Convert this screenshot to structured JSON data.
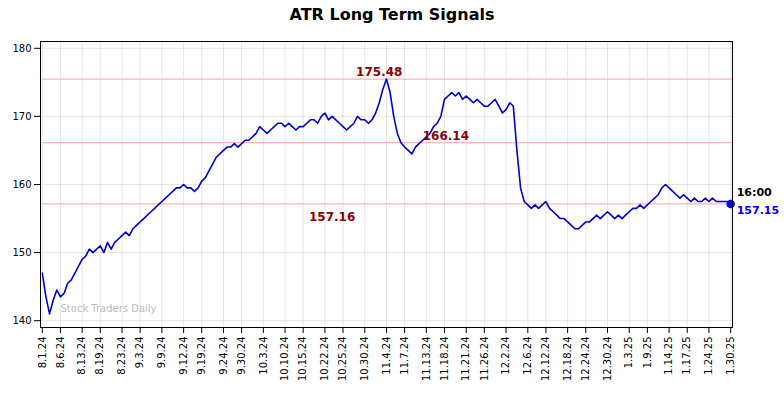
{
  "chart_data": {
    "type": "line",
    "title": "ATR Long Term Signals",
    "categories": [
      "8.1.24",
      null,
      null,
      null,
      null,
      "8.6.24",
      null,
      null,
      null,
      null,
      null,
      "8.13.24",
      null,
      null,
      null,
      null,
      "8.19.24",
      null,
      null,
      null,
      null,
      null,
      "8.23.24",
      null,
      null,
      null,
      null,
      "9.3.24",
      null,
      null,
      null,
      null,
      null,
      "9.9.24",
      null,
      null,
      null,
      null,
      null,
      "9.12.24",
      null,
      null,
      null,
      null,
      "9.19.24",
      null,
      null,
      null,
      null,
      null,
      "9.24.24",
      null,
      null,
      null,
      null,
      "9.30.24",
      null,
      null,
      null,
      null,
      null,
      "10.3.24",
      null,
      null,
      null,
      null,
      null,
      "10.10.24",
      null,
      null,
      null,
      null,
      "10.15.24",
      null,
      null,
      null,
      null,
      null,
      "10.22.24",
      null,
      null,
      null,
      null,
      "10.25.24",
      null,
      null,
      null,
      null,
      null,
      "10.30.24",
      null,
      null,
      null,
      null,
      null,
      "11.4.24",
      null,
      null,
      null,
      null,
      "11.7.24",
      null,
      null,
      null,
      null,
      null,
      "11.13.24",
      null,
      null,
      null,
      null,
      "11.18.24",
      null,
      null,
      null,
      null,
      null,
      "11.21.24",
      null,
      null,
      null,
      null,
      "11.26.24",
      null,
      null,
      null,
      null,
      null,
      "12.2.24",
      null,
      null,
      null,
      null,
      null,
      "12.6.24",
      null,
      null,
      null,
      null,
      "12.12.24",
      null,
      null,
      null,
      null,
      null,
      "12.18.24",
      null,
      null,
      null,
      null,
      "12.24.24",
      null,
      null,
      null,
      null,
      null,
      "12.30.24",
      null,
      null,
      null,
      null,
      null,
      "1.3.25",
      null,
      null,
      null,
      null,
      "1.9.25",
      null,
      null,
      null,
      null,
      null,
      "1.14.25",
      null,
      null,
      null,
      null,
      "1.17.25",
      null,
      null,
      null,
      null,
      null,
      "1.24.25",
      null,
      null,
      null,
      null,
      null,
      "1.30.25"
    ],
    "values": [
      147.0,
      143.5,
      141.0,
      143.0,
      144.5,
      143.5,
      144.0,
      145.5,
      146.0,
      147.0,
      148.0,
      149.0,
      149.5,
      150.5,
      150.0,
      150.5,
      151.0,
      150.0,
      151.5,
      150.5,
      151.5,
      152.0,
      152.5,
      153.0,
      152.5,
      153.5,
      154.0,
      154.5,
      155.0,
      155.5,
      156.0,
      156.5,
      157.0,
      157.5,
      158.0,
      158.5,
      159.0,
      159.5,
      159.5,
      160.0,
      159.5,
      159.5,
      159.0,
      159.5,
      160.5,
      161.0,
      162.0,
      163.0,
      164.0,
      164.5,
      165.0,
      165.5,
      165.5,
      166.0,
      165.5,
      166.0,
      166.5,
      166.5,
      167.0,
      167.5,
      168.5,
      168.0,
      167.5,
      168.0,
      168.5,
      169.0,
      169.0,
      168.5,
      169.0,
      168.5,
      168.0,
      168.5,
      168.5,
      169.0,
      169.5,
      169.5,
      169.0,
      170.0,
      170.5,
      169.5,
      170.0,
      169.5,
      169.0,
      168.5,
      168.0,
      168.5,
      169.0,
      170.0,
      169.5,
      169.5,
      169.0,
      169.5,
      170.5,
      172.0,
      174.0,
      175.48,
      173.5,
      170.0,
      167.5,
      166.14,
      165.5,
      165.0,
      164.5,
      165.5,
      166.0,
      166.5,
      167.0,
      167.5,
      168.5,
      169.0,
      170.0,
      172.5,
      173.0,
      173.5,
      173.0,
      173.5,
      172.5,
      173.0,
      172.5,
      172.0,
      172.5,
      172.0,
      171.5,
      171.5,
      172.0,
      172.5,
      171.5,
      170.5,
      171.0,
      172.0,
      171.5,
      165.0,
      159.5,
      157.5,
      157.0,
      156.5,
      157.0,
      156.5,
      157.0,
      157.5,
      156.5,
      156.0,
      155.5,
      155.0,
      155.0,
      154.5,
      154.0,
      153.5,
      153.5,
      154.0,
      154.5,
      154.5,
      155.0,
      155.5,
      155.0,
      155.5,
      156.0,
      155.5,
      155.0,
      155.5,
      155.0,
      155.5,
      156.0,
      156.5,
      156.5,
      157.0,
      156.5,
      157.0,
      157.5,
      158.0,
      158.5,
      159.5,
      160.0,
      159.5,
      159.0,
      158.5,
      158.0,
      158.5,
      158.0,
      157.5,
      158.0,
      157.5,
      157.5,
      158.0,
      157.5,
      158.0,
      157.5,
      157.5,
      157.5,
      157.5,
      157.15
    ],
    "color": "#0000cc",
    "ylim": [
      139,
      181
    ],
    "yticks": [
      140,
      150,
      160,
      170,
      180
    ],
    "grid": true,
    "reference_lines": {
      "values": [
        175.48,
        166.14,
        157.16
      ],
      "color": "#ffb3b3",
      "label_color": "#8b0000"
    },
    "watermark": {
      "text": "Stock Traders Daily",
      "color": "#bbbbbb"
    },
    "end_label": {
      "text": "16:00",
      "value": 157.15,
      "color": "#0000ff"
    }
  }
}
